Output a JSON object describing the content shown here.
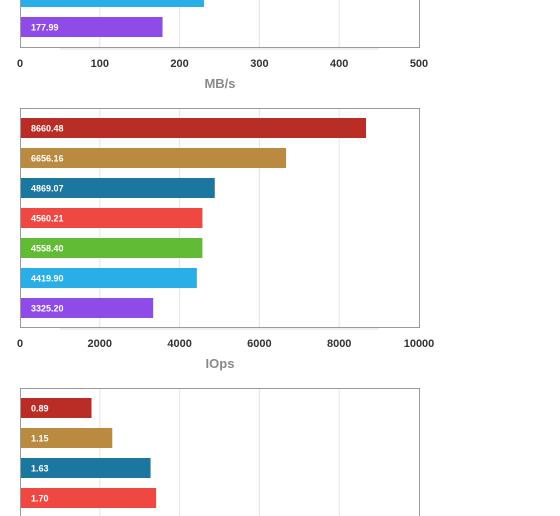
{
  "chart_data": [
    {
      "type": "bar",
      "orientation": "horizontal",
      "xlabel": "MB/s",
      "xlim": [
        0,
        500
      ],
      "xticks": [
        "0",
        "100",
        "200",
        "300",
        "400",
        "500"
      ],
      "grid": true,
      "bars": [
        {
          "value": 230.0,
          "label": "",
          "color": "#2aaee8"
        },
        {
          "value": 177.99,
          "label": "177.99",
          "color": "#8e4be8"
        }
      ]
    },
    {
      "type": "bar",
      "orientation": "horizontal",
      "xlabel": "IOps",
      "xlim": [
        0,
        10000
      ],
      "xticks": [
        "0",
        "2000",
        "4000",
        "6000",
        "8000",
        "10000"
      ],
      "grid": true,
      "bars": [
        {
          "value": 8660.48,
          "label": "8660.48",
          "color": "#b92d26"
        },
        {
          "value": 6656.16,
          "label": "6656.16",
          "color": "#b98a3f"
        },
        {
          "value": 4869.07,
          "label": "4869.07",
          "color": "#1c77a0"
        },
        {
          "value": 4560.21,
          "label": "4560.21",
          "color": "#ef4842"
        },
        {
          "value": 4558.4,
          "label": "4558.40",
          "color": "#62bb35"
        },
        {
          "value": 4419.9,
          "label": "4419.90",
          "color": "#2aaee8"
        },
        {
          "value": 3325.2,
          "label": "3325.20",
          "color": "#8e4be8"
        }
      ]
    },
    {
      "type": "bar",
      "orientation": "horizontal",
      "xlabel": "",
      "xlim": [
        0,
        5
      ],
      "xticks": [],
      "grid": true,
      "bars": [
        {
          "value": 0.89,
          "label": "0.89",
          "color": "#b92d26"
        },
        {
          "value": 1.15,
          "label": "1.15",
          "color": "#b98a3f"
        },
        {
          "value": 1.63,
          "label": "1.63",
          "color": "#1c77a0"
        },
        {
          "value": 1.7,
          "label": "1.70",
          "color": "#ef4842"
        }
      ]
    }
  ]
}
